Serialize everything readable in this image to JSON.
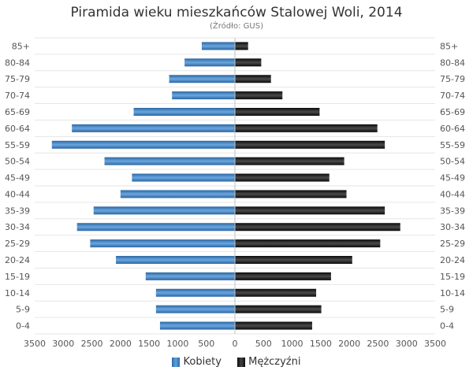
{
  "chart_data": {
    "type": "bar",
    "title": "Piramida wieku mieszkańców Stalowej Woli, 2014",
    "subtitle": "(Źródło: GUS)",
    "categories": [
      "85+",
      "80-84",
      "75-79",
      "70-74",
      "65-69",
      "60-64",
      "55-59",
      "50-54",
      "45-49",
      "40-44",
      "35-39",
      "30-34",
      "25-29",
      "20-24",
      "15-19",
      "10-14",
      "5-9",
      "0-4"
    ],
    "series": [
      {
        "name": "Kobiety",
        "color": "#3f7fc0",
        "values": [
          580,
          880,
          1150,
          1100,
          1770,
          2850,
          3200,
          2280,
          1800,
          2000,
          2470,
          2760,
          2530,
          2080,
          1560,
          1380,
          1380,
          1310
        ]
      },
      {
        "name": "Mężczyźni",
        "color": "#1c1c1c",
        "values": [
          230,
          460,
          630,
          830,
          1480,
          2490,
          2620,
          1910,
          1650,
          1950,
          2620,
          2890,
          2540,
          2050,
          1680,
          1420,
          1510,
          1350
        ]
      }
    ],
    "xlim": [
      -3500,
      3500
    ],
    "x_ticks": [
      "3500",
      "3000",
      "2500",
      "2000",
      "1500",
      "1000",
      "500",
      "0",
      "500",
      "1000",
      "1500",
      "2000",
      "2500",
      "3000",
      "3500"
    ],
    "grid": true,
    "legend_position": "bottom"
  }
}
